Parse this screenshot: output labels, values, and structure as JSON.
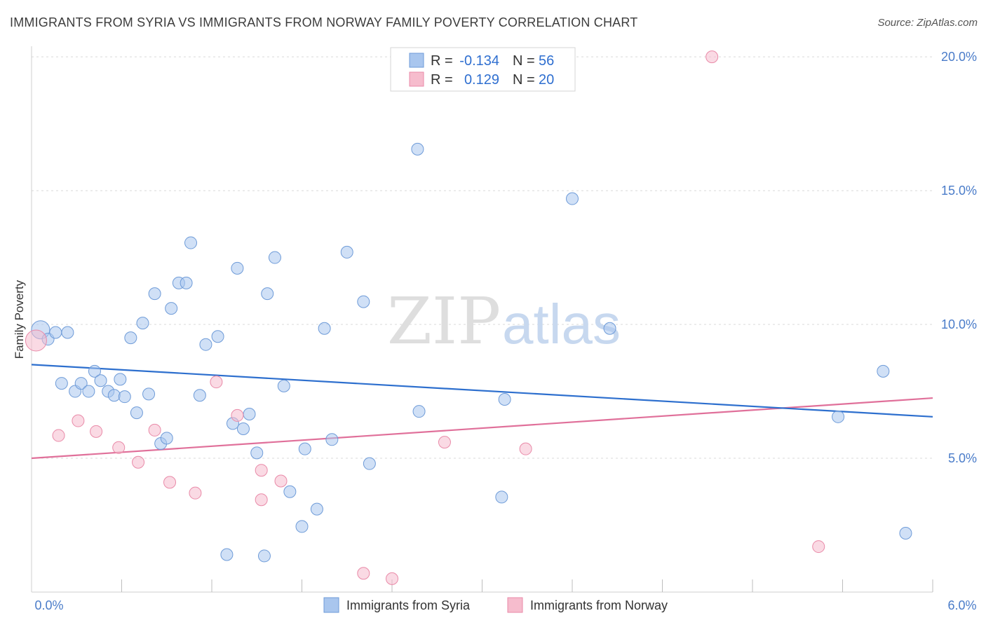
{
  "header": {
    "title": "IMMIGRANTS FROM SYRIA VS IMMIGRANTS FROM NORWAY FAMILY POVERTY CORRELATION CHART",
    "source": "Source: ZipAtlas.com"
  },
  "watermark": {
    "zip": "ZIP",
    "atlas": "atlas"
  },
  "legend_top": {
    "rows": [
      {
        "r_label": "R =",
        "r_value": "-0.134",
        "n_label": "N =",
        "n_value": "56"
      },
      {
        "r_label": "R =",
        "r_value": "0.129",
        "n_label": "N =",
        "n_value": "20"
      }
    ]
  },
  "colors": {
    "syria_fill": "#a9c6ee",
    "syria_stroke": "#6e9bd8",
    "syria_line": "#2d6fce",
    "norway_fill": "#f6bccd",
    "norway_stroke": "#e98aa8",
    "norway_line": "#e0709a",
    "tick_text": "#4a7cc9"
  },
  "chart_data": {
    "type": "scatter",
    "title": "IMMIGRANTS FROM SYRIA VS IMMIGRANTS FROM NORWAY FAMILY POVERTY CORRELATION CHART",
    "xlabel": "",
    "ylabel": "Family Poverty",
    "xlim": [
      0,
      6
    ],
    "ylim": [
      0,
      20.5
    ],
    "x_tick_labels": [
      "0.0%",
      "6.0%"
    ],
    "y_ticks": [
      5,
      10,
      15,
      20
    ],
    "y_tick_labels": [
      "5.0%",
      "10.0%",
      "15.0%",
      "20.0%"
    ],
    "grid": true,
    "legend_position": "bottom-center",
    "series": [
      {
        "name": "Immigrants from Syria",
        "r": -0.134,
        "n": 56,
        "trend": {
          "x": [
            0,
            6
          ],
          "y": [
            8.5,
            6.55
          ]
        },
        "points": [
          [
            0.06,
            9.8
          ],
          [
            0.11,
            9.45
          ],
          [
            0.16,
            9.7
          ],
          [
            0.24,
            9.7
          ],
          [
            0.2,
            7.8
          ],
          [
            0.29,
            7.5
          ],
          [
            0.33,
            7.8
          ],
          [
            0.38,
            7.5
          ],
          [
            0.42,
            8.25
          ],
          [
            0.46,
            7.9
          ],
          [
            0.51,
            7.5
          ],
          [
            0.55,
            7.35
          ],
          [
            0.59,
            7.95
          ],
          [
            0.66,
            9.5
          ],
          [
            0.7,
            6.7
          ],
          [
            0.74,
            10.05
          ],
          [
            0.78,
            7.4
          ],
          [
            0.82,
            11.15
          ],
          [
            0.86,
            5.55
          ],
          [
            0.9,
            5.75
          ],
          [
            0.93,
            10.6
          ],
          [
            0.98,
            11.55
          ],
          [
            1.03,
            11.55
          ],
          [
            1.06,
            13.05
          ],
          [
            1.12,
            7.35
          ],
          [
            1.16,
            9.25
          ],
          [
            1.24,
            9.55
          ],
          [
            1.34,
            6.3
          ],
          [
            1.37,
            12.1
          ],
          [
            1.41,
            6.1
          ],
          [
            1.45,
            6.65
          ],
          [
            1.5,
            5.2
          ],
          [
            1.55,
            1.35
          ],
          [
            1.57,
            11.15
          ],
          [
            1.62,
            12.5
          ],
          [
            1.68,
            7.7
          ],
          [
            1.72,
            3.75
          ],
          [
            1.8,
            2.45
          ],
          [
            1.82,
            5.35
          ],
          [
            1.9,
            3.1
          ],
          [
            1.95,
            9.85
          ],
          [
            2.0,
            5.7
          ],
          [
            2.1,
            12.7
          ],
          [
            2.21,
            10.85
          ],
          [
            2.25,
            4.8
          ],
          [
            2.57,
            16.55
          ],
          [
            2.58,
            6.75
          ],
          [
            3.13,
            3.55
          ],
          [
            3.15,
            7.2
          ],
          [
            3.6,
            14.7
          ],
          [
            3.85,
            9.85
          ],
          [
            5.37,
            6.55
          ],
          [
            5.67,
            8.25
          ],
          [
            5.82,
            2.2
          ],
          [
            1.3,
            1.4
          ],
          [
            0.62,
            7.3
          ]
        ]
      },
      {
        "name": "Immigrants from Norway",
        "r": 0.129,
        "n": 20,
        "trend": {
          "x": [
            0,
            6
          ],
          "y": [
            5.0,
            7.25
          ]
        },
        "points": [
          [
            0.03,
            9.4
          ],
          [
            0.18,
            5.85
          ],
          [
            0.31,
            6.4
          ],
          [
            0.43,
            6.0
          ],
          [
            0.58,
            5.4
          ],
          [
            0.71,
            4.85
          ],
          [
            0.82,
            6.05
          ],
          [
            0.92,
            4.1
          ],
          [
            1.09,
            3.7
          ],
          [
            1.23,
            7.85
          ],
          [
            1.37,
            6.6
          ],
          [
            1.53,
            3.45
          ],
          [
            1.53,
            4.55
          ],
          [
            1.66,
            4.15
          ],
          [
            2.21,
            0.7
          ],
          [
            2.4,
            0.5
          ],
          [
            2.75,
            5.6
          ],
          [
            3.29,
            5.35
          ],
          [
            4.53,
            20.0
          ],
          [
            5.24,
            1.7
          ]
        ]
      }
    ]
  }
}
